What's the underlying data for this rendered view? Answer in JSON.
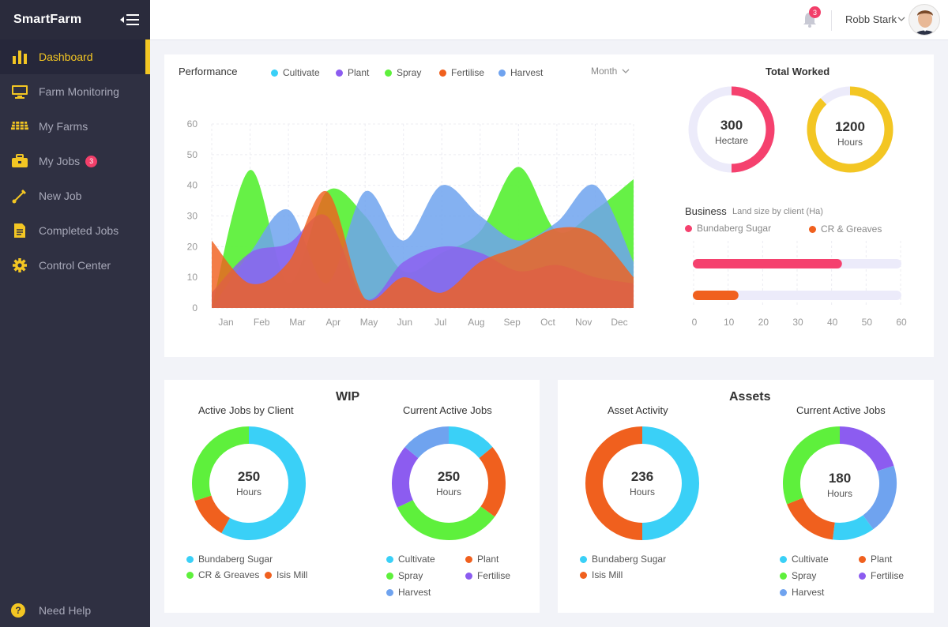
{
  "app": {
    "name": "SmartFarm"
  },
  "sidebar": {
    "items": [
      {
        "label": "Dashboard",
        "icon": "bar-chart-icon",
        "active": true
      },
      {
        "label": "Farm Monitoring",
        "icon": "monitor-icon"
      },
      {
        "label": "My Farms",
        "icon": "farm-icon"
      },
      {
        "label": "My Jobs",
        "icon": "briefcase-icon",
        "badge": "3"
      },
      {
        "label": "New Job",
        "icon": "shovel-icon"
      },
      {
        "label": "Completed Jobs",
        "icon": "document-icon"
      },
      {
        "label": "Control Center",
        "icon": "gear-icon"
      }
    ],
    "help_label": "Need Help",
    "help_glyph": "?"
  },
  "topbar": {
    "notification_count": "3",
    "user_name": "Robb Stark"
  },
  "colors": {
    "cultivate": "#3ad0f7",
    "plant": "#8c5cf0",
    "spray": "#5ef03c",
    "fertilise": "#f0601e",
    "harvest": "#6fa3ef",
    "pink": "#f5416e",
    "yellow": "#f3c623",
    "bundaberg": "#3ad0f7",
    "cr_greaves": "#5ef03c",
    "isis": "#f0601e"
  },
  "performance": {
    "title": "Performance",
    "legend": [
      "Cultivate",
      "Plant",
      "Spray",
      "Fertilise",
      "Harvest"
    ],
    "period": "Month"
  },
  "total_worked": {
    "title": "Total Worked",
    "hectare": {
      "value": "300",
      "unit": "Hectare",
      "fraction": 0.5
    },
    "hours": {
      "value": "1200",
      "unit": "Hours",
      "fraction": 0.88
    }
  },
  "business": {
    "title": "Business",
    "subtitle": "Land size by client (Ha)",
    "legend": [
      "Bundaberg Sugar",
      "CR & Greaves"
    ]
  },
  "wip": {
    "title": "WIP",
    "active_by_client": {
      "title": "Active Jobs by Client",
      "value": "250",
      "unit": "Hours",
      "legend": [
        "Bundaberg Sugar",
        "CR & Greaves",
        "Isis Mill"
      ]
    },
    "current_active": {
      "title": "Current Active Jobs",
      "value": "250",
      "unit": "Hours",
      "legend": [
        "Cultivate",
        "Plant",
        "Spray",
        "Fertilise",
        "Harvest"
      ]
    }
  },
  "assets": {
    "title": "Assets",
    "asset_activity": {
      "title": "Asset Activity",
      "value": "236",
      "unit": "Hours",
      "legend": [
        "Bundaberg Sugar",
        "Isis Mill"
      ]
    },
    "current_active": {
      "title": "Current Active Jobs",
      "value": "180",
      "unit": "Hours",
      "legend": [
        "Cultivate",
        "Plant",
        "Spray",
        "Fertilise",
        "Harvest"
      ]
    }
  },
  "chart_data": [
    {
      "type": "area",
      "categories": [
        "Jan",
        "Feb",
        "Mar",
        "Apr",
        "May",
        "Jun",
        "Jul",
        "Aug",
        "Sep",
        "Oct",
        "Nov",
        "Dec"
      ],
      "ylim": [
        0,
        60
      ],
      "yticks": [
        "0",
        "10",
        "20",
        "30",
        "40",
        "50",
        "60"
      ],
      "series": [
        {
          "name": "Spray",
          "values": [
            0,
            45,
            8,
            38,
            30,
            12,
            18,
            25,
            46,
            25,
            32,
            42
          ]
        },
        {
          "name": "Harvest",
          "values": [
            0,
            18,
            32,
            8,
            38,
            22,
            40,
            30,
            22,
            28,
            40,
            15
          ]
        },
        {
          "name": "Plant",
          "values": [
            5,
            18,
            21,
            30,
            3,
            15,
            20,
            18,
            12,
            14,
            10,
            8
          ]
        },
        {
          "name": "Fertilise",
          "values": [
            22,
            8,
            15,
            38,
            3,
            10,
            5,
            15,
            20,
            26,
            24,
            10
          ]
        }
      ]
    },
    {
      "type": "bar",
      "orientation": "horizontal",
      "categories": [
        "Bundaberg Sugar",
        "CR & Greaves"
      ],
      "values": [
        43,
        13
      ],
      "xlim": [
        0,
        60
      ],
      "xticks": [
        "0",
        "10",
        "20",
        "30",
        "40",
        "50",
        "60"
      ]
    },
    {
      "type": "pie",
      "title": "Active Jobs by Client",
      "categories": [
        "Bundaberg Sugar",
        "Isis Mill",
        "CR & Greaves"
      ],
      "values": [
        58,
        12,
        30
      ]
    },
    {
      "type": "pie",
      "title": "Current Active Jobs",
      "categories": [
        "Cultivate",
        "Fertilise",
        "Spray",
        "Plant",
        "Harvest"
      ],
      "values": [
        14,
        21,
        33,
        18,
        14
      ]
    },
    {
      "type": "pie",
      "title": "Asset Activity",
      "categories": [
        "Bundaberg Sugar",
        "Isis Mill"
      ],
      "values": [
        50,
        50
      ]
    },
    {
      "type": "pie",
      "title": "Current Active Jobs",
      "categories": [
        "Plant",
        "Harvest",
        "Cultivate",
        "Fertilise",
        "Spray"
      ],
      "values": [
        20,
        20,
        12,
        17,
        31
      ]
    }
  ]
}
